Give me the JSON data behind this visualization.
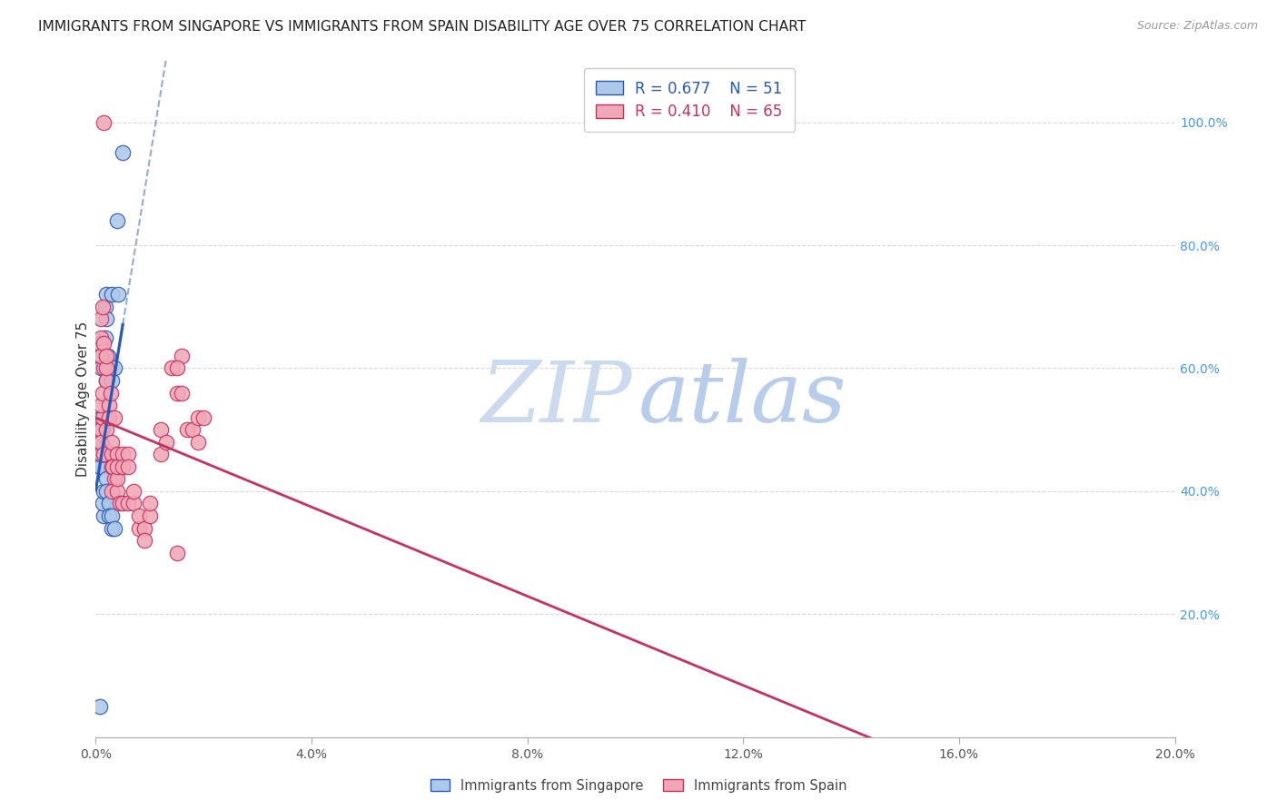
{
  "title": "IMMIGRANTS FROM SINGAPORE VS IMMIGRANTS FROM SPAIN DISABILITY AGE OVER 75 CORRELATION CHART",
  "source": "Source: ZipAtlas.com",
  "ylabel": "Disability Age Over 75",
  "legend_singapore": "Immigrants from Singapore",
  "legend_spain": "Immigrants from Spain",
  "R_singapore": 0.677,
  "N_singapore": 51,
  "R_spain": 0.41,
  "N_spain": 65,
  "color_sg_face": "#adc8e8",
  "color_sg_edge": "#2858b8",
  "color_sp_face": "#f0a8b8",
  "color_sp_edge": "#c83060",
  "line_sg": "#2858b8",
  "line_sp": "#c83060",
  "sg_x": [
    0.05,
    0.08,
    0.05,
    0.1,
    0.1,
    0.1,
    0.1,
    0.1,
    0.08,
    0.08,
    0.08,
    0.1,
    0.1,
    0.1,
    0.1,
    0.12,
    0.12,
    0.15,
    0.15,
    0.12,
    0.1,
    0.1,
    0.18,
    0.2,
    0.2,
    0.2,
    0.2,
    0.22,
    0.22,
    0.18,
    0.25,
    0.3,
    0.3,
    0.25,
    0.15,
    0.12,
    0.15,
    0.2,
    0.2,
    0.25,
    0.25,
    0.3,
    0.3,
    0.35,
    0.3,
    0.35,
    0.3,
    0.4,
    0.5,
    0.08,
    0.42
  ],
  "sg_y": [
    0.45,
    0.48,
    0.5,
    0.52,
    0.44,
    0.47,
    0.465,
    0.46,
    0.5,
    0.48,
    0.44,
    0.46,
    0.5,
    0.48,
    0.52,
    0.46,
    0.5,
    0.46,
    0.47,
    0.46,
    0.62,
    0.6,
    0.7,
    0.68,
    0.72,
    0.6,
    0.58,
    0.6,
    0.62,
    0.65,
    0.38,
    0.4,
    0.38,
    0.36,
    0.36,
    0.38,
    0.4,
    0.42,
    0.4,
    0.38,
    0.36,
    0.34,
    0.36,
    0.34,
    0.58,
    0.6,
    0.72,
    0.84,
    0.95,
    0.05,
    0.72
  ],
  "sp_x": [
    0.05,
    0.1,
    0.1,
    0.1,
    0.12,
    0.1,
    0.08,
    0.1,
    0.1,
    0.12,
    0.1,
    0.15,
    0.12,
    0.15,
    0.1,
    0.15,
    0.2,
    0.2,
    0.2,
    0.25,
    0.2,
    0.25,
    0.3,
    0.3,
    0.3,
    0.28,
    0.35,
    0.4,
    0.4,
    0.35,
    0.3,
    0.32,
    0.4,
    0.4,
    0.45,
    0.5,
    0.4,
    0.5,
    0.5,
    0.6,
    0.6,
    0.6,
    0.7,
    0.7,
    0.8,
    0.8,
    0.9,
    0.9,
    1.0,
    1.0,
    1.2,
    1.2,
    1.3,
    1.4,
    1.5,
    1.6,
    1.5,
    1.6,
    1.7,
    1.8,
    1.9,
    1.9,
    2.0,
    1.5,
    0.15
  ],
  "sp_y": [
    0.5,
    0.46,
    0.48,
    0.5,
    0.52,
    0.54,
    0.64,
    0.65,
    0.68,
    0.7,
    0.48,
    0.46,
    0.56,
    0.6,
    0.62,
    0.64,
    0.58,
    0.6,
    0.62,
    0.54,
    0.5,
    0.52,
    0.46,
    0.44,
    0.48,
    0.56,
    0.52,
    0.46,
    0.44,
    0.42,
    0.4,
    0.44,
    0.4,
    0.42,
    0.38,
    0.38,
    0.44,
    0.46,
    0.44,
    0.46,
    0.44,
    0.38,
    0.38,
    0.4,
    0.34,
    0.36,
    0.34,
    0.32,
    0.36,
    0.38,
    0.46,
    0.5,
    0.48,
    0.6,
    0.56,
    0.62,
    0.6,
    0.56,
    0.5,
    0.5,
    0.52,
    0.48,
    0.52,
    0.3,
    1.0
  ],
  "xlim": [
    0.0,
    20.0
  ],
  "ylim": [
    0.0,
    1.1
  ],
  "yticks_right": [
    0.2,
    0.4,
    0.6,
    0.8,
    1.0
  ],
  "xticks": [
    0.0,
    4.0,
    8.0,
    12.0,
    16.0,
    20.0
  ],
  "bg_color": "#ffffff",
  "grid_color": "#d8d8d8",
  "right_tick_color": "#4499ee",
  "title_color": "#222222",
  "source_color": "#999999",
  "ylabel_color": "#333333"
}
